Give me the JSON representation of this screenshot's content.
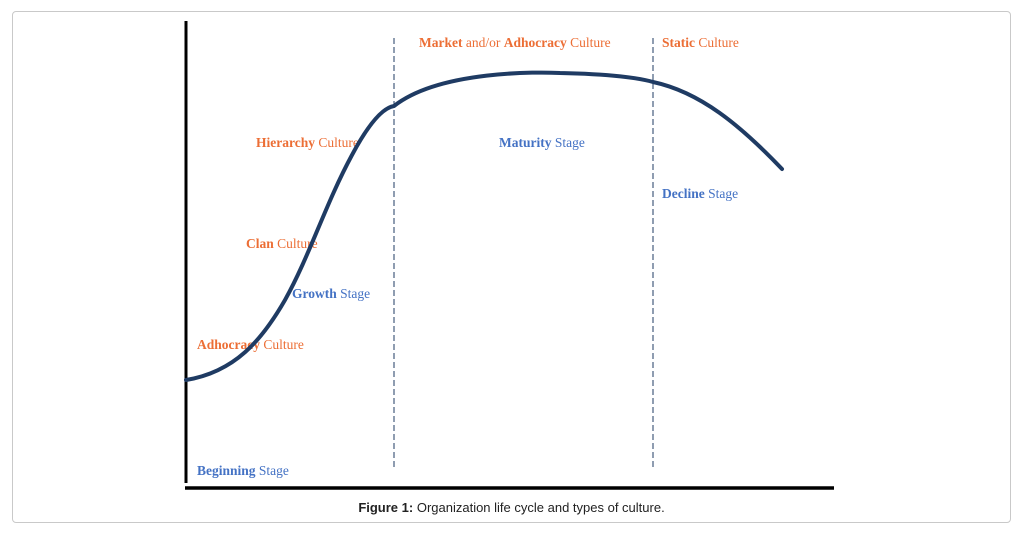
{
  "diagram": {
    "cultures": {
      "market": {
        "bold": "Market",
        "rest": " and/or ",
        "bold2": "Adhocracy",
        "rest2": " Culture"
      },
      "static": {
        "bold": "Static",
        "rest": " Culture"
      },
      "hierarchy": {
        "bold": "Hierarchy",
        "rest": " Culture"
      },
      "clan": {
        "bold": "Clan",
        "rest": " Culture"
      },
      "adhocracy": {
        "bold": "Adhocracy",
        "rest": " Culture"
      }
    },
    "stages": {
      "maturity": {
        "bold": "Maturity",
        "rest": " Stage"
      },
      "decline": {
        "bold": "Decline",
        "rest": " Stage"
      },
      "growth": {
        "bold": "Growth",
        "rest": " Stage"
      },
      "beginning": {
        "bold": "Beginning",
        "rest": " Stage"
      }
    },
    "colors": {
      "curve": "#1f3b63",
      "culture_text": "#ec6e35",
      "stage_text": "#4472c4",
      "divider": "#1f3b63",
      "axis": "#000000"
    }
  },
  "caption": {
    "label": "Figure 1:",
    "text": " Organization life cycle and types of culture."
  }
}
